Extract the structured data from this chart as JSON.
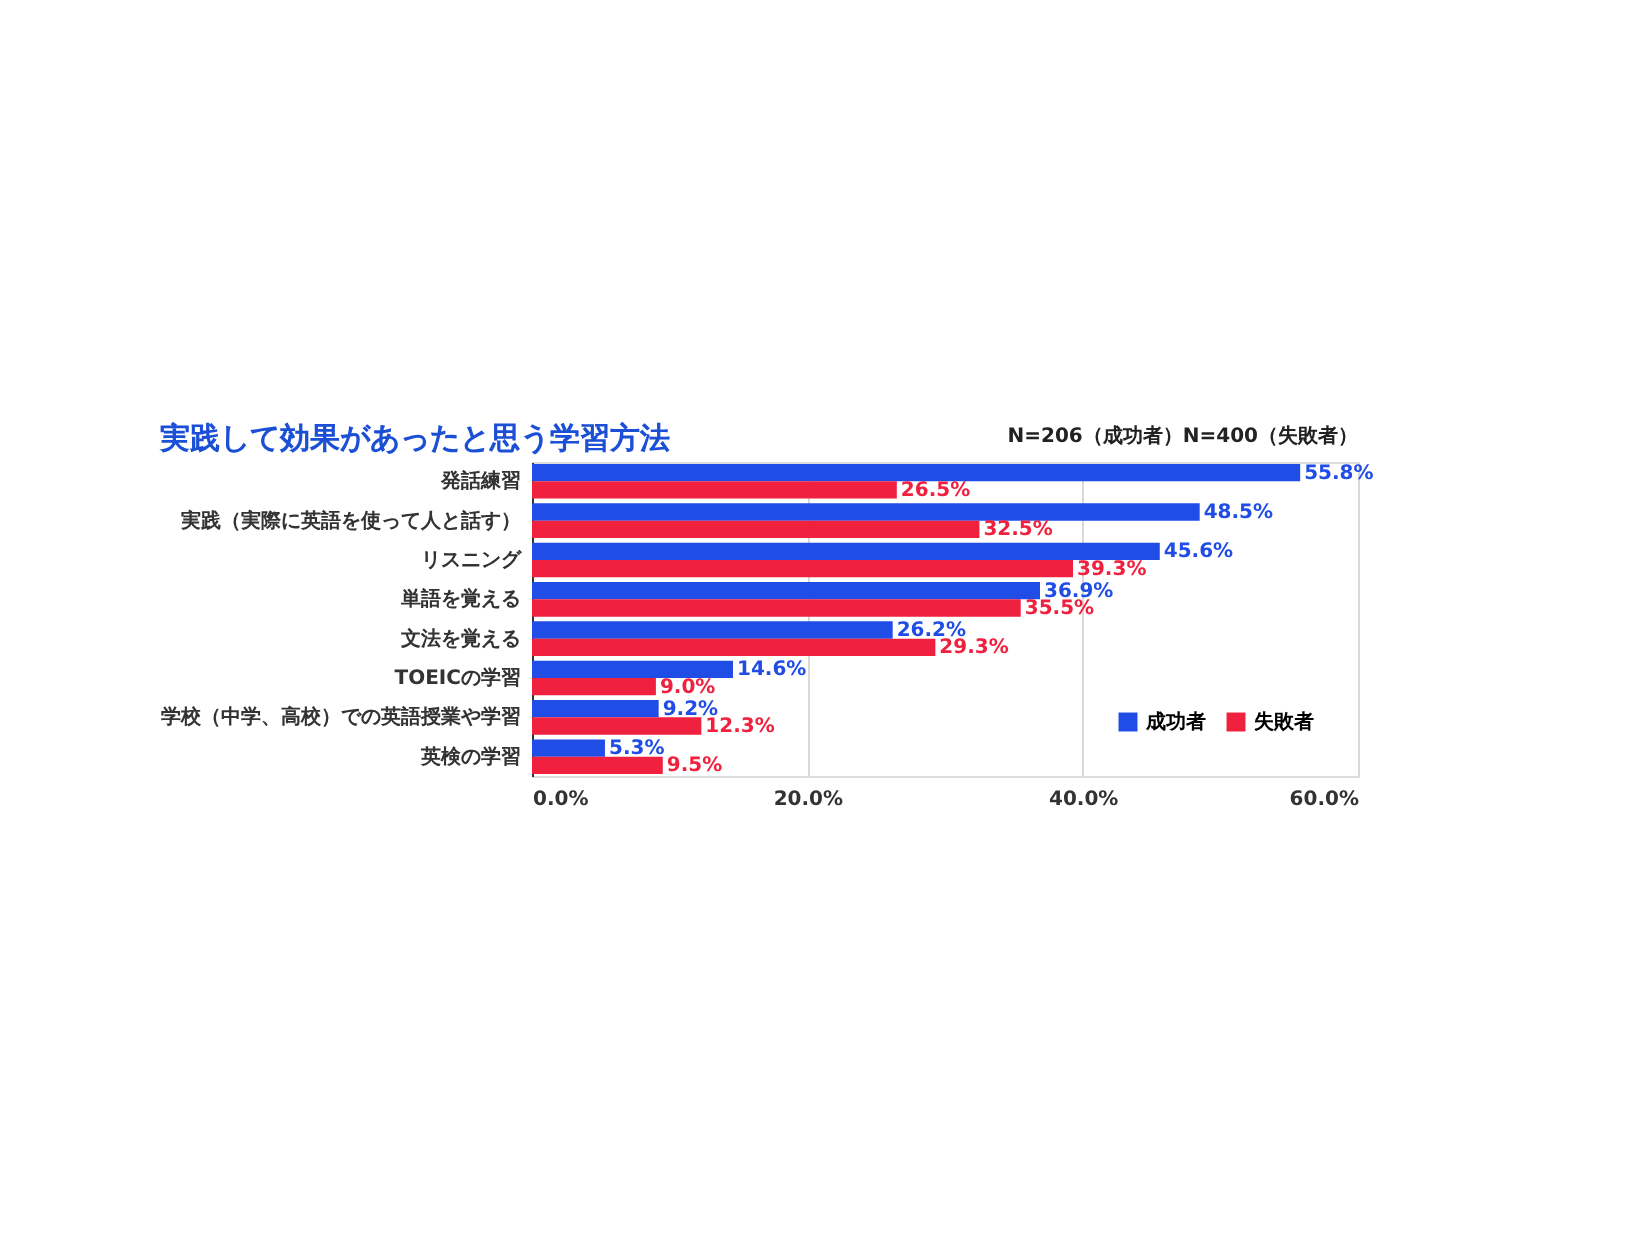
{
  "chart_data": {
    "type": "bar",
    "orientation": "horizontal",
    "title": "実践して効果があったと思う学習方法",
    "annotations": [
      "N=206（成功者）N=400（失敗者）"
    ],
    "categories": [
      "発話練習",
      "実践（実際に英語を使って人と話す）",
      "リスニング",
      "単語を覚える",
      "文法を覚える",
      "TOEICの学習",
      "学校（中学、高校）での英語授業や学習",
      "英検の学習"
    ],
    "series": [
      {
        "name": "成功者",
        "color": "#1f4de6",
        "values": [
          55.8,
          48.5,
          45.6,
          36.9,
          26.2,
          14.6,
          9.2,
          5.3
        ],
        "value_labels": [
          "55.8%",
          "48.5%",
          "45.6%",
          "36.9%",
          "26.2%",
          "14.6%",
          "9.2%",
          "5.3%"
        ]
      },
      {
        "name": "失敗者",
        "color": "#f0213f",
        "values": [
          26.5,
          32.5,
          39.3,
          35.5,
          29.3,
          9.0,
          12.3,
          9.5
        ],
        "value_labels": [
          "26.5%",
          "32.5%",
          "39.3%",
          "35.5%",
          "29.3%",
          "9.0%",
          "12.3%",
          "9.5%"
        ]
      }
    ],
    "xlim": [
      0,
      60
    ],
    "xticks": [
      {
        "value": 0,
        "label": "0.0%"
      },
      {
        "value": 20,
        "label": "20.0%"
      },
      {
        "value": 40,
        "label": "40.0%"
      },
      {
        "value": 60,
        "label": "60.0%"
      }
    ],
    "grid": "x",
    "legend": "bottom right"
  }
}
